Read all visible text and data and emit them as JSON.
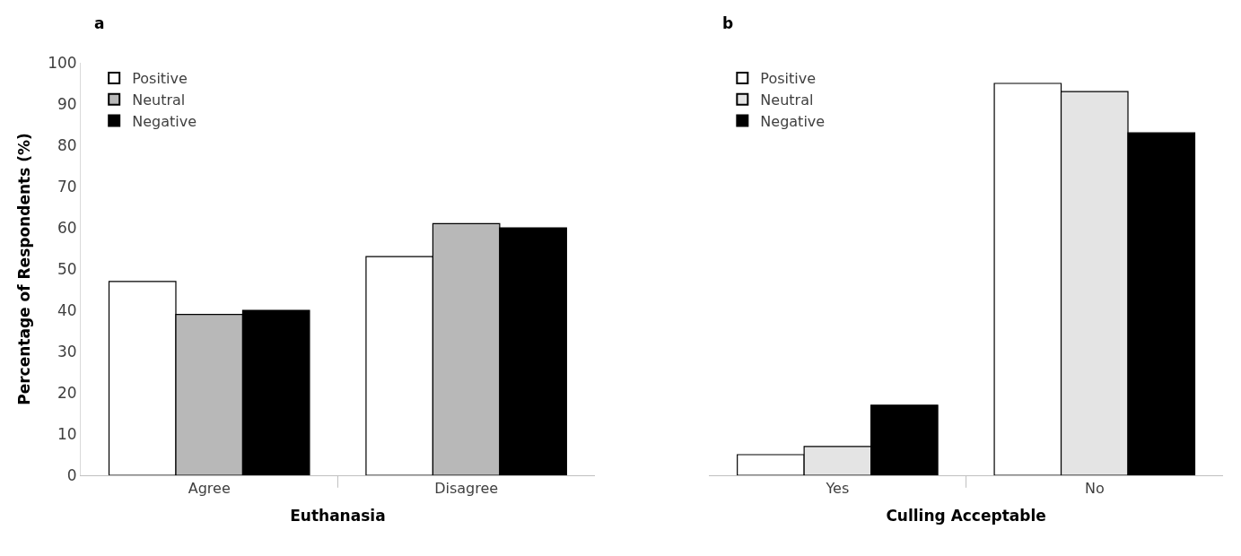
{
  "chart_data": [
    {
      "type": "bar",
      "title": "a",
      "xlabel": "Euthanasia",
      "ylabel": "Percentage of Respondents (%)",
      "categories": [
        "Agree",
        "Disagree"
      ],
      "series": [
        {
          "name": "Positive",
          "color": "#ffffff",
          "values": [
            47,
            53
          ]
        },
        {
          "name": "Neutral",
          "color": "#b8b8b8",
          "values": [
            39,
            61
          ]
        },
        {
          "name": "Negative",
          "color": "#000000",
          "values": [
            40,
            60
          ]
        }
      ],
      "ylim": [
        0,
        100
      ],
      "yticks": [
        0,
        10,
        20,
        30,
        40,
        50,
        60,
        70,
        80,
        90,
        100
      ],
      "legend": "top left",
      "grid": false
    },
    {
      "type": "bar",
      "title": "b",
      "xlabel": "Culling Acceptable",
      "categories": [
        "Yes",
        "No"
      ],
      "series": [
        {
          "name": "Positive",
          "color": "#ffffff",
          "values": [
            5,
            95
          ]
        },
        {
          "name": "Neutral",
          "color": "#e4e4e4",
          "values": [
            7,
            93
          ]
        },
        {
          "name": "Negative",
          "color": "#000000",
          "values": [
            17,
            83
          ]
        }
      ],
      "ylim": [
        0,
        100
      ],
      "yticks": [
        0,
        10,
        20,
        30,
        40,
        50,
        60,
        70,
        80,
        90,
        100
      ],
      "legend": "top left",
      "grid": false,
      "tick_labels": "x"
    }
  ]
}
